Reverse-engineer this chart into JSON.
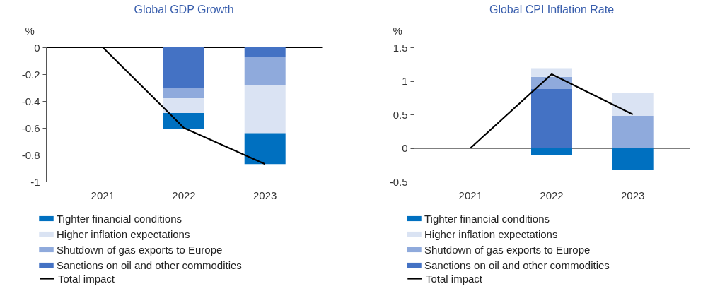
{
  "chart_data": [
    {
      "type": "bar",
      "title": "Global GDP Growth",
      "ylabel": "%",
      "categories": [
        "2021",
        "2022",
        "2023"
      ],
      "stacked": true,
      "ylim": [
        -1,
        0
      ],
      "yticks": [
        -1,
        -0.8,
        -0.6,
        -0.4,
        -0.2,
        0
      ],
      "legend": "bottom",
      "series": [
        {
          "name": "Sanctions on oil and other commodities",
          "color": "#4472c4",
          "values": [
            null,
            -0.3,
            -0.07
          ]
        },
        {
          "name": "Shutdown of gas exports to Europe",
          "color": "#8faadc",
          "values": [
            null,
            -0.08,
            -0.21
          ]
        },
        {
          "name": "Higher inflation expectations",
          "color": "#dae3f3",
          "values": [
            null,
            -0.11,
            -0.36
          ]
        },
        {
          "name": "Tighter financial conditions",
          "color": "#0070c0",
          "values": [
            null,
            -0.12,
            -0.23
          ]
        },
        {
          "name": "Total impact",
          "type": "line",
          "color": "#000000",
          "values": [
            0,
            -0.6,
            -0.87
          ]
        }
      ]
    },
    {
      "type": "bar",
      "title": "Global CPI Inflation Rate",
      "ylabel": "%",
      "categories": [
        "2021",
        "2022",
        "2023"
      ],
      "stacked": true,
      "ylim": [
        -0.5,
        1.5
      ],
      "yticks": [
        -0.5,
        0,
        0.5,
        1,
        1.5
      ],
      "legend": "bottom",
      "series": [
        {
          "name": "Sanctions on oil and other commodities",
          "color": "#4472c4",
          "values": [
            null,
            0.88,
            null
          ]
        },
        {
          "name": "Shutdown of gas exports to Europe",
          "color": "#8faadc",
          "values": [
            null,
            0.18,
            0.48
          ]
        },
        {
          "name": "Higher inflation expectations",
          "color": "#dae3f3",
          "values": [
            null,
            0.13,
            0.34
          ]
        },
        {
          "name": "Tighter financial conditions",
          "color": "#0070c0",
          "values": [
            null,
            -0.1,
            -0.32
          ]
        },
        {
          "name": "Total impact",
          "type": "line",
          "color": "#000000",
          "values": [
            0,
            1.1,
            0.5
          ]
        }
      ]
    }
  ]
}
